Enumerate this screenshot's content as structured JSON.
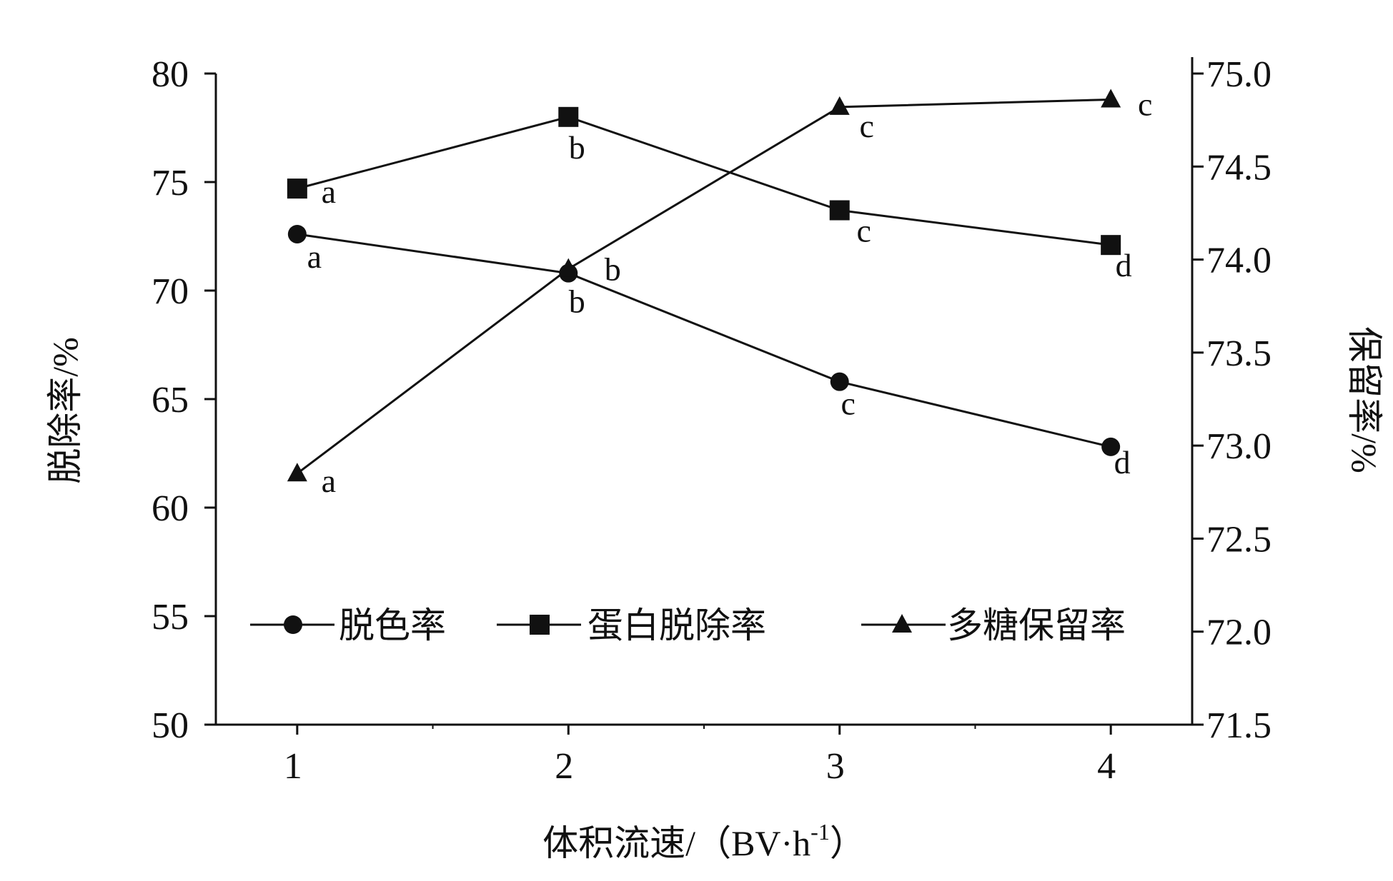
{
  "chart_data": {
    "type": "line",
    "title": "",
    "xlabel": "体积流速/（BV·h",
    "xlabel_sup": "-1",
    "xlabel_end": "）",
    "ylabel_left": "脱除率/%",
    "ylabel_right": "保留率/%",
    "x": [
      1,
      2,
      3,
      4
    ],
    "x_tick_labels": [
      "1",
      "2",
      "3",
      "4"
    ],
    "xlim": [
      0.7,
      4.3
    ],
    "ylim_left": [
      50,
      80
    ],
    "ylim_right": [
      71.5,
      75.0
    ],
    "left_ticks": [
      "50",
      "55",
      "60",
      "65",
      "70",
      "75",
      "80"
    ],
    "right_ticks": [
      "71.5",
      "72.0",
      "72.5",
      "73.0",
      "73.5",
      "74.0",
      "74.5",
      "75.0"
    ],
    "grid": false,
    "legend_position": "bottom-center",
    "series": [
      {
        "name": "脱色率",
        "axis": "left",
        "marker": "circle",
        "values": [
          72.6,
          70.8,
          65.8,
          62.8
        ],
        "point_labels": [
          "a",
          "b",
          "c",
          "d"
        ]
      },
      {
        "name": "蛋白脱除率",
        "axis": "left",
        "marker": "square",
        "values": [
          74.7,
          78.0,
          73.7,
          72.1
        ],
        "point_labels": [
          "a",
          "b",
          "c",
          "d"
        ]
      },
      {
        "name": "多糖保留率",
        "axis": "right",
        "marker": "triangle",
        "values": [
          72.85,
          73.95,
          74.82,
          74.86
        ],
        "point_labels": [
          "a",
          "b",
          "c",
          "c"
        ]
      }
    ],
    "colors": {
      "line": "#111111",
      "background": "#ffffff"
    }
  }
}
